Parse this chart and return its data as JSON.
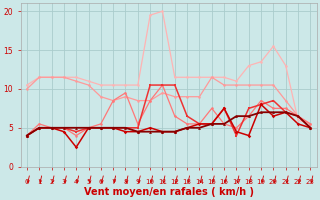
{
  "background_color": "#cce8e8",
  "grid_color": "#aacccc",
  "xlabel": "Vent moyen/en rafales ( km/h )",
  "xlabel_color": "#cc0000",
  "xlabel_fontsize": 7,
  "tick_color": "#cc0000",
  "ylim": [
    0,
    21
  ],
  "yticks": [
    0,
    5,
    10,
    15,
    20
  ],
  "xlim": [
    -0.5,
    23.5
  ],
  "xticks": [
    0,
    1,
    2,
    3,
    4,
    5,
    6,
    7,
    8,
    9,
    10,
    11,
    12,
    13,
    14,
    15,
    16,
    17,
    18,
    19,
    20,
    21,
    22,
    23
  ],
  "series": [
    {
      "color": "#ffb3b3",
      "linewidth": 0.9,
      "marker": "o",
      "markersize": 1.8,
      "data": [
        10.5,
        11.5,
        11.5,
        11.5,
        11.5,
        11.0,
        10.5,
        10.5,
        10.5,
        10.5,
        19.5,
        20.0,
        11.5,
        11.5,
        11.5,
        11.5,
        11.5,
        11.0,
        13.0,
        13.5,
        15.5,
        13.0,
        6.0,
        5.5
      ]
    },
    {
      "color": "#ff9999",
      "linewidth": 0.9,
      "marker": "o",
      "markersize": 1.8,
      "data": [
        10.0,
        11.5,
        11.5,
        11.5,
        11.0,
        10.5,
        9.0,
        8.5,
        9.0,
        8.5,
        8.5,
        9.5,
        9.0,
        9.0,
        9.0,
        11.5,
        10.5,
        10.5,
        10.5,
        10.5,
        10.5,
        8.5,
        6.5,
        5.5
      ]
    },
    {
      "color": "#ff7777",
      "linewidth": 0.9,
      "marker": "o",
      "markersize": 1.8,
      "data": [
        4.0,
        5.5,
        5.0,
        5.0,
        4.0,
        5.0,
        5.5,
        8.5,
        9.5,
        5.5,
        8.5,
        10.5,
        6.5,
        5.5,
        5.5,
        7.5,
        5.5,
        5.0,
        6.5,
        8.5,
        7.5,
        7.5,
        6.5,
        5.5
      ]
    },
    {
      "color": "#ee3333",
      "linewidth": 1.1,
      "marker": "s",
      "markersize": 2.0,
      "data": [
        4.0,
        5.0,
        5.0,
        5.0,
        4.5,
        5.0,
        5.0,
        5.0,
        5.0,
        5.0,
        10.5,
        10.5,
        10.5,
        6.5,
        5.5,
        5.5,
        7.5,
        4.0,
        7.5,
        8.0,
        8.5,
        7.0,
        6.5,
        5.0
      ]
    },
    {
      "color": "#cc0000",
      "linewidth": 1.1,
      "marker": "D",
      "markersize": 1.8,
      "data": [
        4.0,
        5.0,
        5.0,
        4.5,
        2.5,
        5.0,
        5.0,
        5.0,
        4.5,
        4.5,
        5.0,
        4.5,
        4.5,
        5.0,
        5.5,
        5.5,
        7.5,
        4.5,
        4.0,
        8.0,
        6.5,
        7.0,
        5.5,
        5.0
      ]
    },
    {
      "color": "#880000",
      "linewidth": 1.3,
      "marker": "^",
      "markersize": 2.0,
      "data": [
        4.0,
        5.0,
        5.0,
        5.0,
        5.0,
        5.0,
        5.0,
        5.0,
        5.0,
        4.5,
        4.5,
        4.5,
        4.5,
        5.0,
        5.0,
        5.5,
        5.5,
        6.5,
        6.5,
        7.0,
        7.0,
        7.0,
        6.5,
        5.0
      ]
    }
  ],
  "arrow_color": "#cc0000",
  "spine_color": "#aaaaaa"
}
